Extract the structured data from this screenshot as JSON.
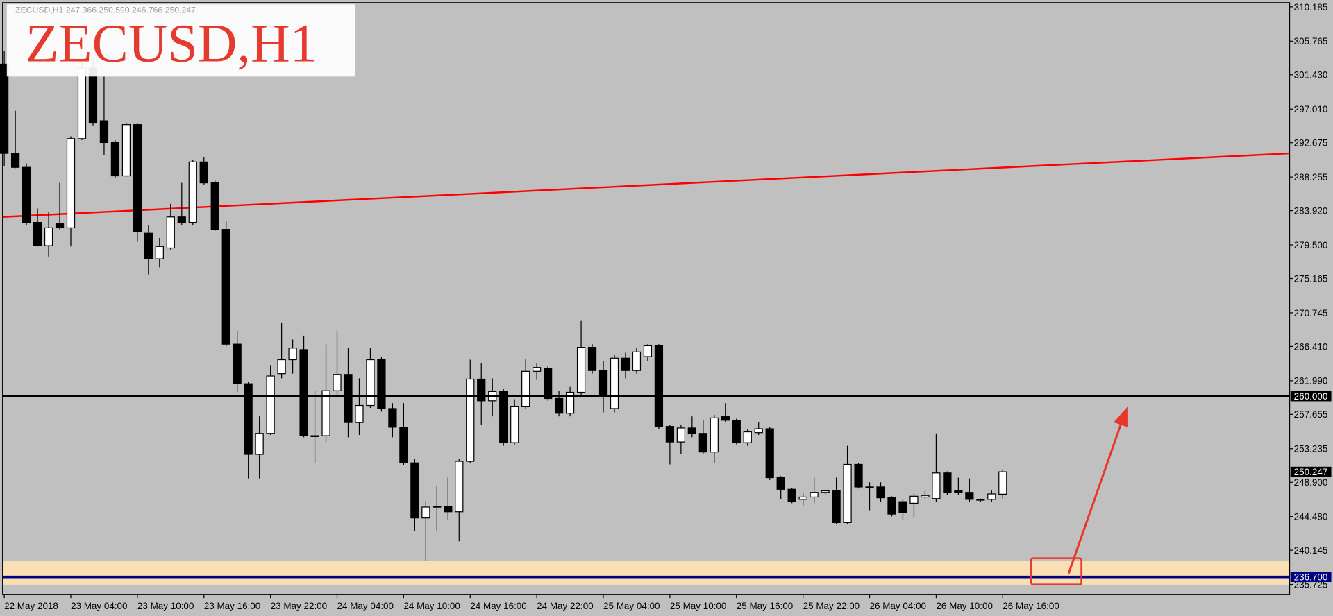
{
  "chart_data": {
    "type": "candlestick",
    "title": "ZECUSD,H1",
    "symbol_info": "ZECUSD,H1  247.366 250.590 246.766 250.247",
    "categories": [
      "22 May 2018",
      null,
      null,
      null,
      null,
      null,
      "23 May 04:00",
      null,
      null,
      null,
      null,
      null,
      "23 May 10:00",
      null,
      null,
      null,
      null,
      null,
      "23 May 16:00",
      null,
      null,
      null,
      null,
      null,
      "23 May 22:00",
      null,
      null,
      null,
      null,
      null,
      "24 May 04:00",
      null,
      null,
      null,
      null,
      null,
      "24 May 10:00",
      null,
      null,
      null,
      null,
      null,
      "24 May 16:00",
      null,
      null,
      null,
      null,
      null,
      "24 May 22:00",
      null,
      null,
      null,
      null,
      null,
      "25 May 04:00",
      null,
      null,
      null,
      null,
      null,
      "25 May 10:00",
      null,
      null,
      null,
      null,
      null,
      "25 May 16:00",
      null,
      null,
      null,
      null,
      null,
      "25 May 22:00",
      null,
      null,
      null,
      null,
      null,
      "26 May 04:00",
      null,
      null,
      null,
      null,
      null,
      "26 May 10:00",
      null,
      null,
      null,
      null,
      null,
      "26 May 16:00"
    ],
    "open": [
      302.8,
      291.3,
      289.5,
      282.4,
      279.4,
      282.3,
      281.7,
      293.2,
      302.3,
      295.5,
      292.7,
      288.4,
      295.0,
      281.0,
      277.7,
      279.1,
      283.1,
      282.4,
      290.2,
      287.5,
      281.5,
      266.7,
      261.6,
      252.5,
      255.2,
      262.9,
      264.7,
      266.0,
      254.9,
      254.9,
      260.7,
      262.8,
      256.6,
      258.8,
      264.7,
      258.4,
      256.0,
      251.4,
      244.3,
      245.7,
      245.8,
      245.1,
      251.6,
      262.2,
      259.4,
      260.6,
      254.0,
      258.7,
      263.2,
      263.6,
      259.7,
      257.8,
      260.5,
      266.3,
      263.3,
      258.4,
      264.9,
      263.3,
      265.1,
      266.5,
      256.1,
      254.1,
      255.9,
      255.2,
      252.8,
      257.4,
      256.9,
      254.0,
      255.3,
      255.8,
      249.5,
      248.0,
      246.7,
      247.0,
      247.6,
      247.8,
      243.7,
      251.2,
      248.2,
      248.3,
      246.9,
      246.4,
      246.2,
      247.0,
      246.8,
      250.1,
      247.8,
      247.6,
      246.7,
      246.7,
      247.366
    ],
    "high": [
      304.5,
      296.8,
      290.0,
      284.2,
      283.7,
      287.5,
      293.5,
      303.6,
      303.4,
      301.2,
      293.0,
      295.2,
      295.2,
      282.0,
      280.4,
      284.8,
      287.5,
      290.5,
      290.8,
      287.8,
      282.6,
      268.4,
      261.8,
      257.4,
      264.0,
      269.5,
      267.3,
      267.8,
      260.7,
      266.7,
      268.4,
      266.2,
      262.3,
      266.2,
      265.1,
      259.1,
      259.1,
      251.9,
      246.5,
      248.4,
      249.5,
      251.9,
      264.7,
      264.3,
      262.3,
      260.9,
      259.6,
      264.8,
      264.2,
      263.9,
      260.7,
      261.2,
      269.7,
      266.7,
      264.5,
      265.3,
      265.6,
      266.2,
      266.7,
      266.7,
      256.3,
      256.3,
      257.4,
      256.9,
      257.6,
      259.1,
      257.1,
      255.8,
      256.6,
      256.0,
      249.7,
      248.2,
      247.6,
      249.5,
      247.9,
      249.5,
      253.6,
      251.4,
      248.9,
      248.9,
      247.1,
      246.7,
      247.6,
      247.8,
      255.2,
      250.3,
      249.5,
      249.4,
      246.8,
      247.9,
      250.59
    ],
    "low": [
      289.7,
      289.4,
      282.0,
      279.3,
      278.0,
      281.5,
      279.3,
      293.0,
      294.9,
      291.1,
      288.1,
      288.3,
      279.9,
      275.7,
      276.6,
      278.8,
      282.0,
      282.0,
      287.2,
      281.3,
      266.4,
      260.5,
      249.4,
      249.4,
      255.0,
      262.3,
      262.9,
      254.7,
      251.4,
      254.1,
      260.1,
      254.7,
      255.0,
      258.5,
      258.0,
      254.7,
      251.1,
      242.6,
      238.8,
      242.6,
      244.0,
      241.3,
      251.4,
      256.3,
      257.4,
      253.6,
      253.8,
      258.3,
      262.1,
      259.4,
      257.4,
      257.4,
      260.1,
      262.9,
      257.9,
      257.9,
      262.3,
      262.9,
      264.5,
      255.8,
      251.2,
      252.5,
      254.7,
      252.5,
      251.4,
      256.6,
      253.8,
      253.6,
      255.0,
      249.2,
      246.7,
      246.2,
      245.9,
      246.2,
      247.3,
      243.5,
      243.5,
      248.1,
      245.3,
      246.4,
      244.5,
      244.0,
      244.3,
      246.7,
      246.4,
      247.3,
      247.3,
      246.4,
      246.4,
      246.4,
      246.766
    ],
    "close": [
      291.3,
      289.5,
      282.4,
      279.4,
      281.7,
      281.7,
      293.2,
      302.3,
      295.2,
      292.7,
      288.4,
      295.0,
      281.2,
      277.7,
      279.3,
      283.1,
      282.4,
      290.2,
      287.5,
      281.5,
      266.7,
      261.6,
      252.5,
      255.2,
      262.6,
      264.7,
      266.2,
      254.9,
      254.8,
      260.7,
      262.8,
      256.6,
      258.8,
      264.7,
      258.4,
      256.0,
      251.4,
      244.3,
      245.7,
      245.8,
      245.1,
      251.6,
      262.2,
      259.4,
      260.6,
      254.0,
      258.7,
      263.2,
      263.7,
      259.7,
      257.8,
      260.5,
      266.3,
      263.3,
      259.9,
      264.9,
      263.3,
      265.7,
      266.5,
      256.1,
      254.1,
      255.9,
      255.2,
      252.8,
      257.2,
      256.9,
      254.0,
      255.4,
      255.8,
      249.5,
      248.0,
      246.4,
      247.0,
      247.6,
      247.8,
      243.7,
      251.2,
      248.3,
      248.3,
      246.9,
      244.8,
      245.0,
      247.1,
      247.2,
      250.1,
      247.6,
      247.6,
      246.7,
      246.6,
      247.4,
      250.247
    ],
    "up_color": "#ffffff",
    "down_color": "#000000",
    "ylim": [
      234.41,
      310.73
    ],
    "yticks": [
      310.185,
      305.765,
      {
        "value": 301.43,
        "label": "301.430"
      },
      {
        "value": 297.01,
        "label": "297.010"
      },
      292.675,
      288.255,
      {
        "value": 283.92,
        "label": "283.920"
      },
      {
        "value": 279.5,
        "label": "279.500"
      },
      275.165,
      270.745,
      {
        "value": 266.41,
        "label": "266.410"
      },
      {
        "value": 261.99,
        "label": "261.990"
      },
      257.655,
      253.235,
      {
        "value": 248.9,
        "label": "248.900"
      },
      {
        "value": 244.48,
        "label": "244.480"
      },
      240.145,
      235.725
    ],
    "levels": [
      {
        "value": 260,
        "label": "260.000",
        "color": "#000000"
      },
      {
        "value": 236.7,
        "label": "236.700",
        "color": "#000080"
      }
    ],
    "current_price": {
      "value": 250.247,
      "label": "250.247"
    },
    "trendline": {
      "start": 283.1,
      "end": 291.3,
      "color": "#ff0000"
    },
    "zone": {
      "low": 235.7,
      "high": 238.8,
      "color": "#fbdfb4"
    }
  }
}
